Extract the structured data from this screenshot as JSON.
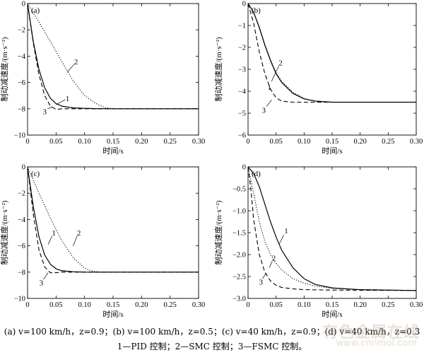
{
  "chart_data": [
    {
      "type": "line",
      "panel": "(a)",
      "xlabel": "时间/s",
      "ylabel": "制动减速度/(m·s⁻²)",
      "xlim": [
        0,
        0.3
      ],
      "ylim": [
        -10,
        0
      ],
      "xticks": [
        0,
        0.05,
        0.1,
        0.15,
        0.2,
        0.25,
        0.3
      ],
      "xtick_labels": [
        "0",
        "0.05",
        "0.10",
        "0.15",
        "0.20",
        "0.25",
        "0.30"
      ],
      "yticks": [
        0,
        -2,
        -4,
        -6,
        -8,
        -10
      ],
      "ytick_labels": [
        "0",
        "−2",
        "−4",
        "−6",
        "−8",
        "−10"
      ],
      "series": [
        {
          "name": "1",
          "style": "solid",
          "x": [
            0,
            0.01,
            0.02,
            0.03,
            0.04,
            0.05,
            0.06,
            0.08,
            0.1,
            0.12,
            0.15,
            0.2,
            0.3
          ],
          "y": [
            0,
            -2.9,
            -5.0,
            -6.4,
            -7.2,
            -7.6,
            -7.8,
            -7.93,
            -7.97,
            -7.99,
            -8.0,
            -8.0,
            -8.0
          ],
          "label_pos": [
            0.07,
            -7.2
          ],
          "label_start": [
            0.066,
            -7.3
          ],
          "label_end": [
            0.05,
            -7.7
          ]
        },
        {
          "name": "2",
          "style": "dotted",
          "x": [
            0,
            0.02,
            0.04,
            0.06,
            0.08,
            0.1,
            0.12,
            0.135,
            0.15,
            0.2,
            0.3
          ],
          "y": [
            0,
            -1.4,
            -2.9,
            -4.4,
            -5.9,
            -7.0,
            -7.6,
            -7.9,
            -8.0,
            -8.0,
            -8.0
          ],
          "label_pos": [
            0.085,
            -4.4
          ],
          "label_start": [
            0.082,
            -4.6
          ],
          "label_end": [
            0.07,
            -5.2
          ]
        },
        {
          "name": "3",
          "style": "dashed",
          "x": [
            0,
            0.01,
            0.02,
            0.03,
            0.04,
            0.05,
            0.06,
            0.08,
            0.1,
            0.15,
            0.3
          ],
          "y": [
            0,
            -3.0,
            -5.4,
            -7.0,
            -7.8,
            -8.05,
            -8.0,
            -8.0,
            -8.0,
            -8.0,
            -8.0
          ],
          "label_pos": [
            0.03,
            -8.2
          ],
          "label_start": [
            0.035,
            -8.0
          ],
          "label_end": [
            0.044,
            -7.85
          ]
        }
      ]
    },
    {
      "type": "line",
      "panel": "(b)",
      "xlabel": "时间/s",
      "ylabel": "制动减速度/(m·s⁻²)",
      "xlim": [
        0,
        0.3
      ],
      "ylim": [
        -6,
        0
      ],
      "xticks": [
        0,
        0.05,
        0.1,
        0.15,
        0.2,
        0.25,
        0.3
      ],
      "xtick_labels": [
        "0",
        "0.05",
        "0.10",
        "0.15",
        "0.20",
        "0.25",
        "0.30"
      ],
      "yticks": [
        0,
        -1,
        -2,
        -3,
        -4,
        -5,
        -6
      ],
      "ytick_labels": [
        "0",
        "−1",
        "−2",
        "−3",
        "−4",
        "−5",
        "−6"
      ],
      "series": [
        {
          "name": "1",
          "style": "solid",
          "x": [
            0,
            0.01,
            0.02,
            0.03,
            0.04,
            0.05,
            0.06,
            0.08,
            0.1,
            0.12,
            0.15,
            0.2,
            0.3
          ],
          "y": [
            0,
            -0.4,
            -1.1,
            -1.9,
            -2.6,
            -3.2,
            -3.6,
            -4.1,
            -4.35,
            -4.45,
            -4.5,
            -4.5,
            -4.5
          ],
          "label_pos": [
            0.038,
            -3.8
          ],
          "label_start": [
            0.042,
            -3.55
          ],
          "label_end": [
            0.05,
            -3.1
          ]
        },
        {
          "name": "2",
          "style": "dotted",
          "x": [
            0,
            0.01,
            0.02,
            0.03,
            0.04,
            0.05,
            0.06,
            0.08,
            0.1,
            0.12,
            0.15,
            0.2,
            0.3
          ],
          "y": [
            0,
            -0.38,
            -1.05,
            -1.85,
            -2.55,
            -3.15,
            -3.55,
            -4.05,
            -4.33,
            -4.45,
            -4.5,
            -4.5,
            -4.5
          ],
          "label_pos": [
            0.058,
            -2.7
          ],
          "label_start": [
            0.055,
            -2.85
          ],
          "label_end": [
            0.05,
            -3.1
          ]
        },
        {
          "name": "3",
          "style": "dashed",
          "x": [
            0,
            0.01,
            0.02,
            0.03,
            0.04,
            0.05,
            0.06,
            0.08,
            0.1,
            0.15,
            0.3
          ],
          "y": [
            0,
            -0.9,
            -2.2,
            -3.2,
            -3.9,
            -4.3,
            -4.45,
            -4.5,
            -4.5,
            -4.5,
            -4.5
          ],
          "label_pos": [
            0.028,
            -4.85
          ],
          "label_start": [
            0.033,
            -4.7
          ],
          "label_end": [
            0.042,
            -4.4
          ]
        }
      ]
    },
    {
      "type": "line",
      "panel": "(c)",
      "xlabel": "时间/s",
      "ylabel": "制动减速度/(m·s⁻²)",
      "xlim": [
        0,
        0.3
      ],
      "ylim": [
        -10,
        0
      ],
      "xticks": [
        0,
        0.05,
        0.1,
        0.15,
        0.2,
        0.25,
        0.3
      ],
      "xtick_labels": [
        "0",
        "0.05",
        "0.10",
        "0.15",
        "0.20",
        "0.25",
        "0.30"
      ],
      "yticks": [
        0,
        -2,
        -4,
        -6,
        -8,
        -10
      ],
      "ytick_labels": [
        "0",
        "−2",
        "−4",
        "−6",
        "−8",
        "−10"
      ],
      "series": [
        {
          "name": "1",
          "style": "solid",
          "x": [
            0,
            0.01,
            0.02,
            0.03,
            0.04,
            0.05,
            0.06,
            0.08,
            0.1,
            0.12,
            0.15,
            0.2,
            0.3
          ],
          "y": [
            0,
            -3.0,
            -5.3,
            -6.7,
            -7.4,
            -7.75,
            -7.9,
            -7.97,
            -8.0,
            -8.0,
            -8.0,
            -8.0,
            -8.0
          ],
          "label_pos": [
            0.046,
            -5.0
          ],
          "label_start": [
            0.043,
            -5.25
          ],
          "label_end": [
            0.036,
            -5.9
          ]
        },
        {
          "name": "2",
          "style": "dotted",
          "x": [
            0,
            0.02,
            0.04,
            0.06,
            0.08,
            0.1,
            0.115,
            0.13,
            0.2,
            0.3
          ],
          "y": [
            0,
            -2.0,
            -3.9,
            -5.6,
            -6.9,
            -7.7,
            -7.95,
            -8.0,
            -8.0,
            -8.0
          ],
          "label_pos": [
            0.09,
            -5.0
          ],
          "label_start": [
            0.087,
            -5.25
          ],
          "label_end": [
            0.08,
            -6.0
          ]
        },
        {
          "name": "3",
          "style": "dashed",
          "x": [
            0,
            0.01,
            0.02,
            0.03,
            0.04,
            0.05,
            0.06,
            0.08,
            0.1,
            0.3
          ],
          "y": [
            0,
            -3.6,
            -6.3,
            -7.6,
            -8.05,
            -8.05,
            -8.0,
            -8.0,
            -8.0,
            -8.0
          ],
          "label_pos": [
            0.024,
            -8.8
          ],
          "label_start": [
            0.028,
            -8.55
          ],
          "label_end": [
            0.036,
            -8.05
          ]
        }
      ]
    },
    {
      "type": "line",
      "panel": "(d)",
      "xlabel": "时间/s",
      "ylabel": "制动减速度/(m·s⁻²)",
      "xlim": [
        0,
        0.3
      ],
      "ylim": [
        -3.0,
        0
      ],
      "xticks": [
        0,
        0.05,
        0.1,
        0.15,
        0.2,
        0.25,
        0.3
      ],
      "xtick_labels": [
        "0",
        "0.05",
        "0.10",
        "0.15",
        "0.20",
        "0.25",
        "0.30"
      ],
      "yticks": [
        0,
        -0.5,
        -1.0,
        -1.5,
        -2.0,
        -2.5,
        -3.0
      ],
      "ytick_labels": [
        "0",
        "−0.5",
        "−1.0",
        "−1.5",
        "−2.0",
        "−2.5",
        "−3.0"
      ],
      "series": [
        {
          "name": "1",
          "style": "solid",
          "x": [
            0,
            0.01,
            0.02,
            0.03,
            0.04,
            0.05,
            0.06,
            0.08,
            0.1,
            0.12,
            0.15,
            0.2,
            0.3
          ],
          "y": [
            0,
            -0.15,
            -0.45,
            -0.85,
            -1.25,
            -1.6,
            -1.9,
            -2.3,
            -2.55,
            -2.68,
            -2.76,
            -2.8,
            -2.82
          ],
          "label_pos": [
            0.068,
            -1.45
          ],
          "label_start": [
            0.064,
            -1.55
          ],
          "label_end": [
            0.056,
            -1.75
          ]
        },
        {
          "name": "2",
          "style": "dotted",
          "x": [
            0,
            0.01,
            0.02,
            0.03,
            0.04,
            0.05,
            0.06,
            0.08,
            0.1,
            0.12,
            0.15,
            0.2,
            0.3
          ],
          "y": [
            0,
            -0.6,
            -1.25,
            -1.7,
            -2.0,
            -2.2,
            -2.35,
            -2.55,
            -2.65,
            -2.72,
            -2.77,
            -2.8,
            -2.82
          ],
          "label_pos": [
            0.046,
            -2.07
          ],
          "label_start": [
            0.043,
            -2.15
          ],
          "label_end": [
            0.038,
            -2.3
          ]
        },
        {
          "name": "3",
          "style": "dashed",
          "x": [
            0,
            0.005,
            0.01,
            0.02,
            0.03,
            0.04,
            0.05,
            0.06,
            0.08,
            0.1,
            0.15,
            0.3
          ],
          "y": [
            0,
            -0.5,
            -1.2,
            -2.0,
            -2.4,
            -2.6,
            -2.7,
            -2.75,
            -2.78,
            -2.8,
            -2.81,
            -2.82
          ],
          "label_pos": [
            0.023,
            -2.62
          ],
          "label_start": [
            0.026,
            -2.55
          ],
          "label_end": [
            0.032,
            -2.42
          ]
        }
      ]
    }
  ],
  "caption": {
    "line1": "(a) v=100 km/h，z=0.9；(b) v=100 km/h，z=0.5；(c) v=40 km/h，z=0.9；(d) v=40 km/h，z=0.3",
    "line2": "1—PID 控制；2—SMC 控制；3—FSMC 控制。"
  },
  "watermark": {
    "text": "有色金属在线",
    "url": "www.cnnmol.com"
  }
}
